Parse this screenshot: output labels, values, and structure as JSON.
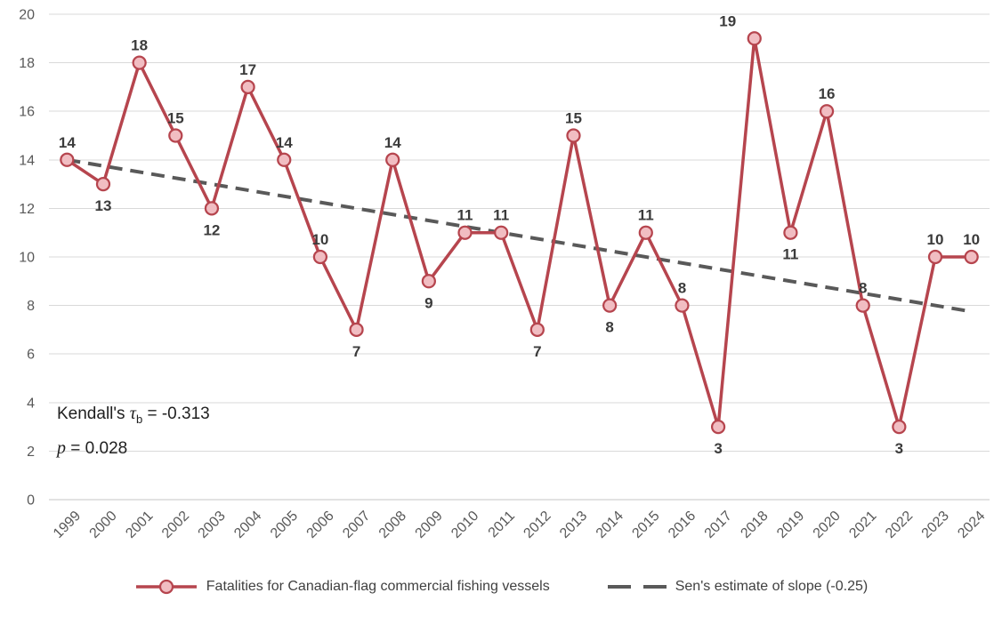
{
  "chart_data": {
    "type": "line",
    "x": [
      1999,
      2000,
      2001,
      2002,
      2003,
      2004,
      2005,
      2006,
      2007,
      2008,
      2009,
      2010,
      2011,
      2012,
      2013,
      2014,
      2015,
      2016,
      2017,
      2018,
      2019,
      2020,
      2021,
      2022,
      2023,
      2024
    ],
    "series": [
      {
        "name": "Fatalities for Canadian-flag commercial fishing vessels",
        "values": [
          14,
          13,
          18,
          15,
          12,
          17,
          14,
          10,
          7,
          14,
          9,
          11,
          11,
          7,
          15,
          8,
          11,
          8,
          3,
          19,
          11,
          16,
          8,
          3,
          10,
          10
        ],
        "color": "#B6454E",
        "marker_fill": "#F1BDC2",
        "marker": "circle",
        "data_labels": true
      },
      {
        "name": "Sen's estimate of slope (-0.25)",
        "style": "dashed",
        "color": "#595959",
        "start_value": 14.0,
        "end_value": 7.75,
        "slope_per_year": -0.25
      }
    ],
    "label_positions": [
      "above",
      "below",
      "above",
      "above",
      "below",
      "above",
      "above",
      "above",
      "below",
      "above",
      "below",
      "above",
      "above",
      "below",
      "above",
      "below",
      "above",
      "above",
      "below",
      "above-left",
      "below",
      "above",
      "above",
      "below",
      "above",
      "above"
    ],
    "ylim": [
      0,
      20
    ],
    "ytick_step": 2,
    "grid": true,
    "legend_position": "bottom",
    "xlabel": "",
    "ylabel": "",
    "annotations": [
      "Kendall's τb = -0.313",
      "p = 0.028"
    ]
  },
  "annotation": {
    "line1_prefix": "Kendall's ",
    "line1_symbol": "τ",
    "line1_sub": "b",
    "line1_rest": " = -0.313",
    "line2_symbol": "p",
    "line2_rest": " = 0.028"
  },
  "colors": {
    "series_red": "#B6454E",
    "marker_pink": "#F1BDC2",
    "trend_gray": "#595959",
    "gridline": "#D9D9D9",
    "tick_label": "#595959",
    "data_label": "#3b3b3b"
  }
}
